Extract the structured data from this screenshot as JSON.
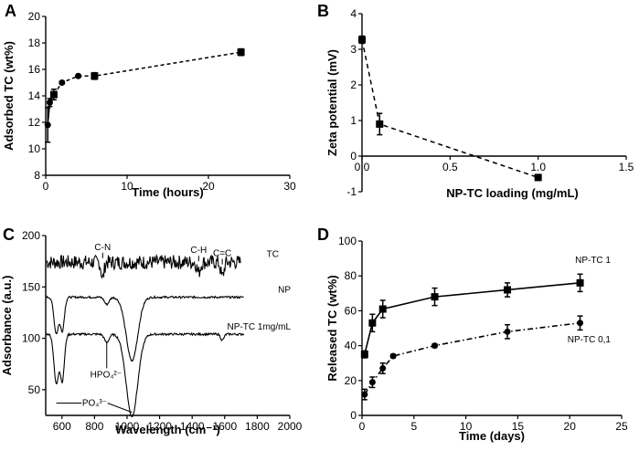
{
  "panels": [
    {
      "label": "A",
      "title": ""
    },
    {
      "label": "B",
      "title": ""
    },
    {
      "label": "C",
      "title": ""
    },
    {
      "label": "D",
      "title": ""
    }
  ],
  "chart_data": [
    {
      "id": "A",
      "type": "line",
      "xlabel": "Time (hours)",
      "ylabel": "Adsorbed TC (wt%)",
      "xlim": [
        0,
        30
      ],
      "ylim": [
        8,
        20
      ],
      "xticks": [
        0,
        10,
        20,
        30
      ],
      "yticks": [
        8,
        10,
        12,
        14,
        16,
        18,
        20
      ],
      "series": [
        {
          "name": "Adsorbed TC",
          "line_style": "solid-then-dashed",
          "points": [
            {
              "x": 0.25,
              "y": 11.8,
              "err": 1.3,
              "marker": "circle"
            },
            {
              "x": 0.5,
              "y": 13.5,
              "err": 0.3,
              "marker": "circle"
            },
            {
              "x": 1,
              "y": 14.1,
              "err": 0.4,
              "marker": "square"
            },
            {
              "x": 2,
              "y": 15.0,
              "err": 0.1,
              "marker": "circle"
            },
            {
              "x": 4,
              "y": 15.5,
              "err": 0.1,
              "marker": "circle"
            },
            {
              "x": 6,
              "y": 15.5,
              "err": 0.25,
              "marker": "square"
            },
            {
              "x": 24,
              "y": 17.3,
              "err": 0.25,
              "marker": "square"
            }
          ]
        }
      ]
    },
    {
      "id": "B",
      "type": "line",
      "xlabel": "NP-TC loading (mg/mL)",
      "ylabel": "Zeta potential (mV)",
      "xlim": [
        0,
        1.5
      ],
      "ylim": [
        -1,
        4
      ],
      "xticks": [
        0.0,
        0.5,
        1.0,
        1.5
      ],
      "xtick_labels": [
        "0.0",
        "0.5",
        "1.0",
        "1.5"
      ],
      "yticks": [
        -1,
        0,
        1,
        2,
        3,
        4
      ],
      "series": [
        {
          "name": "Zeta potential",
          "line_style": "dashed",
          "points": [
            {
              "x": 0.0,
              "y": 3.27,
              "err": 0.1
            },
            {
              "x": 0.1,
              "y": 0.9,
              "err": 0.3
            },
            {
              "x": 1.0,
              "y": -0.6,
              "err": 0.08
            }
          ]
        }
      ]
    },
    {
      "id": "C",
      "type": "line",
      "xlabel": "Wavelength (cm⁻¹)",
      "ylabel": "Adsorbance (a.u.)",
      "xlim": [
        500,
        2000
      ],
      "ylim": [
        25,
        200
      ],
      "xticks": [
        600,
        800,
        1000,
        1200,
        1400,
        1600,
        1800,
        2000
      ],
      "yticks": [
        50,
        100,
        150,
        200
      ],
      "series": [
        {
          "name": "TC",
          "baseline": 174,
          "features": [
            {
              "center": 850,
              "depth": 16,
              "width": 12
            },
            {
              "center": 1440,
              "depth": 10,
              "width": 14
            },
            {
              "center": 1585,
              "depth": 14,
              "width": 14
            }
          ]
        },
        {
          "name": "NP",
          "baseline": 140,
          "features": [
            {
              "center": 565,
              "depth": 35,
              "width": 20
            },
            {
              "center": 602,
              "depth": 32,
              "width": 18
            },
            {
              "center": 875,
              "depth": 7,
              "width": 20
            },
            {
              "center": 1030,
              "depth": 62,
              "width": 50
            }
          ]
        },
        {
          "name": "NP-TC 1mg/mL",
          "baseline": 104,
          "features": [
            {
              "center": 565,
              "depth": 48,
              "width": 20
            },
            {
              "center": 602,
              "depth": 45,
              "width": 18
            },
            {
              "center": 875,
              "depth": 8,
              "width": 20
            },
            {
              "center": 1030,
              "depth": 80,
              "width": 50
            },
            {
              "center": 1585,
              "depth": 6,
              "width": 14
            }
          ]
        }
      ],
      "annotations": [
        {
          "text": "C-N",
          "x": 850,
          "y": 186
        },
        {
          "text": "C-H",
          "x": 1440,
          "y": 183
        },
        {
          "text": "C=C",
          "x": 1585,
          "y": 180
        },
        {
          "text": "HPO₄²⁻",
          "x": 870,
          "y": 62
        },
        {
          "text": "PO₄³⁻",
          "x": 800,
          "y": 37
        }
      ]
    },
    {
      "id": "D",
      "type": "line",
      "xlabel": "Time (days)",
      "ylabel": "Released TC (wt%)",
      "xlim": [
        0,
        25
      ],
      "ylim": [
        0,
        100
      ],
      "xticks": [
        0,
        5,
        10,
        15,
        20,
        25
      ],
      "yticks": [
        0,
        20,
        40,
        60,
        80,
        100
      ],
      "series": [
        {
          "name": "NP-TC 1",
          "line_style": "solid",
          "marker": "square",
          "points": [
            {
              "x": 0.25,
              "y": 35,
              "err": 2
            },
            {
              "x": 1,
              "y": 53,
              "err": 5
            },
            {
              "x": 2,
              "y": 61,
              "err": 5
            },
            {
              "x": 7,
              "y": 68,
              "err": 5
            },
            {
              "x": 14,
              "y": 72,
              "err": 4
            },
            {
              "x": 21,
              "y": 76,
              "err": 5
            }
          ]
        },
        {
          "name": "NP-TC 0,1",
          "line_style": "dashdot",
          "marker": "circle",
          "points": [
            {
              "x": 0.25,
              "y": 12,
              "err": 3
            },
            {
              "x": 1,
              "y": 19,
              "err": 3
            },
            {
              "x": 2,
              "y": 27,
              "err": 3
            },
            {
              "x": 3,
              "y": 34,
              "err": 1
            },
            {
              "x": 7,
              "y": 40,
              "err": 1
            },
            {
              "x": 14,
              "y": 48,
              "err": 4
            },
            {
              "x": 21,
              "y": 53,
              "err": 4
            }
          ]
        }
      ]
    }
  ]
}
